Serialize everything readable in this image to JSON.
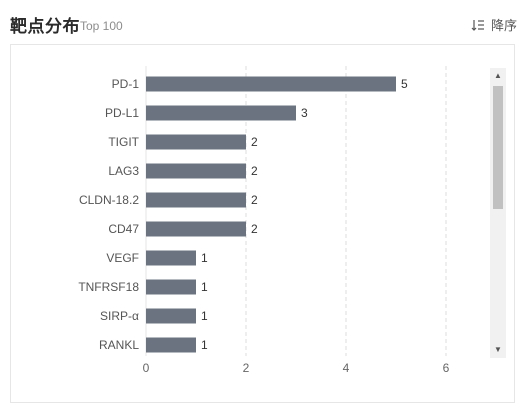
{
  "header": {
    "title": "靶点分布",
    "subtitle": "Top 100",
    "sort_label": "降序",
    "sort_icon": "sort-descending-icon"
  },
  "chart_data": {
    "type": "bar",
    "orientation": "horizontal",
    "categories": [
      "PD-1",
      "PD-L1",
      "TIGIT",
      "LAG3",
      "CLDN-18.2",
      "CD47",
      "VEGF",
      "TNFRSF18",
      "SIRP-α",
      "RANKL"
    ],
    "values": [
      5,
      3,
      2,
      2,
      2,
      2,
      1,
      1,
      1,
      1
    ],
    "xlim": [
      0,
      6
    ],
    "xticks": [
      "0",
      "2",
      "4",
      "6"
    ],
    "grid": "vertical dashed",
    "bar_color": "#6b7380"
  }
}
